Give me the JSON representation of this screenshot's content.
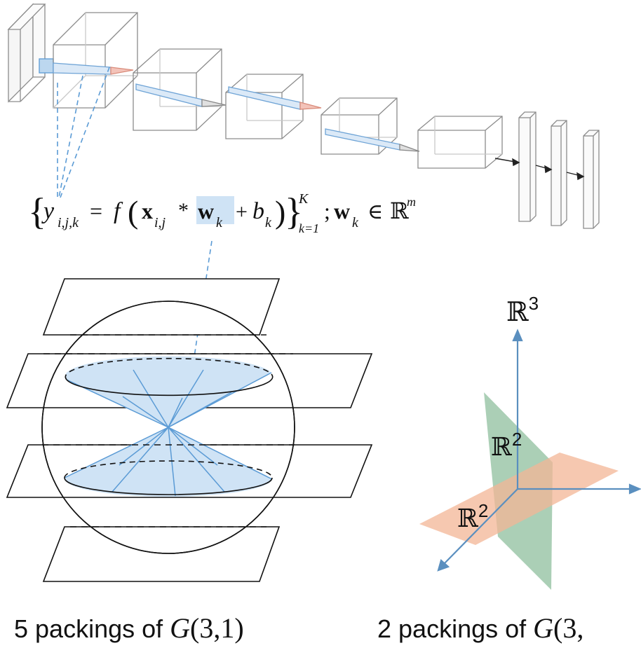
{
  "equation": {
    "brace_open": "{",
    "y": "y",
    "y_sub": "i,j,k",
    "eq": "=",
    "f": "f",
    "paren_open": "(",
    "x": "x",
    "x_sub": "i,j",
    "star": "*",
    "w": "w",
    "w_sub": "k",
    "plus": "+",
    "b": "b",
    "b_sub": "k",
    "paren_close": ")",
    "brace_close": "}",
    "sup_K": "K",
    "sub_k1": "k=1",
    "semicolon": ";",
    "w2": "w",
    "w2_sub": "k",
    "in": "∈",
    "R": "ℝ",
    "R_sup": "m"
  },
  "axes": {
    "R3_label": "ℝ",
    "R3_exp": "3",
    "R2a_label": "ℝ",
    "R2a_exp": "2",
    "R2b_label": "ℝ",
    "R2b_exp": "2"
  },
  "captions": {
    "left_prefix": "5 packings of ",
    "left_G": "G",
    "left_args": "(3,1)",
    "right_prefix": "2 packings of ",
    "right_G": "G",
    "right_args": "(3,"
  },
  "colors": {
    "highlight_blue": "#cfe3f5",
    "line_blue": "#5b9bd5",
    "axis_blue": "#5a8fbf",
    "orange_plane": "#f3b596",
    "green_plane": "#8fbf9d",
    "cone_red": "#e69a8a"
  }
}
